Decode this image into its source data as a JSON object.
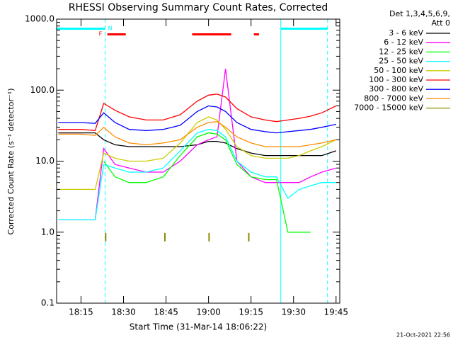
{
  "chart_data": {
    "type": "line",
    "title": "RHESSI Observing Summary Count Rates, Corrected",
    "x_label": "Start Time (31-Mar-14 18:06:22)",
    "y_label": "Corrected Count Rate (s⁻¹ detector⁻¹)",
    "legend_title": [
      "Det 1,3,4,5,6,9,",
      "Att 0"
    ],
    "footer": "21-Oct-2021 22:56",
    "log_y": true,
    "xlim": [
      1086.4,
      1186.3
    ],
    "ylim": [
      0.1,
      1000
    ],
    "xticks": [
      {
        "value": 1095,
        "label": "18:15"
      },
      {
        "value": 1110,
        "label": "18:30"
      },
      {
        "value": 1125,
        "label": "18:45"
      },
      {
        "value": 1140,
        "label": "19:00"
      },
      {
        "value": 1155,
        "label": "19:15"
      },
      {
        "value": 1170,
        "label": "19:30"
      },
      {
        "value": 1185,
        "label": "19:45"
      }
    ],
    "yticks": [
      {
        "value": 1000,
        "label": "1000.0"
      },
      {
        "value": 100,
        "label": "100.0"
      },
      {
        "value": 10,
        "label": "10.0"
      },
      {
        "value": 1,
        "label": "1.0"
      },
      0.1
    ],
    "x": [
      1087,
      1095,
      1100,
      1103,
      1107,
      1112,
      1118,
      1124,
      1130,
      1136,
      1140,
      1143,
      1146,
      1150,
      1155,
      1160,
      1164,
      1168,
      1172,
      1176,
      1180,
      1185
    ],
    "series": [
      {
        "name": "3 - 6 keV",
        "color": "#000000",
        "values": [
          25,
          25,
          25,
          20,
          17,
          16,
          16,
          16,
          16,
          17,
          19,
          19,
          18,
          15,
          13,
          12,
          12,
          12,
          12,
          12,
          12,
          14
        ]
      },
      {
        "name": "6 - 12 keV",
        "color": "#ff00ff",
        "values": [
          1.5,
          1.5,
          1.5,
          15,
          9,
          8,
          7,
          7,
          10,
          17,
          20,
          22,
          200,
          10,
          6,
          5,
          5,
          5,
          5,
          6,
          7,
          8
        ]
      },
      {
        "name": "12 - 25 keV",
        "color": "#00ff00",
        "values": [
          null,
          null,
          null,
          10,
          6,
          5,
          5,
          6,
          12,
          22,
          25,
          24,
          20,
          9,
          6,
          5.5,
          5.5,
          1,
          1,
          1,
          null,
          null
        ]
      },
      {
        "name": "25 - 50 keV",
        "color": "#00ffff",
        "values": [
          1.5,
          1.5,
          1.5,
          9,
          8,
          7,
          7,
          8,
          14,
          25,
          28,
          27,
          22,
          10,
          7,
          6,
          6,
          3,
          4,
          4.5,
          5,
          5
        ]
      },
      {
        "name": "50 - 100 keV",
        "color": "#cccc00",
        "values": [
          4,
          4,
          4,
          13,
          11,
          10,
          10,
          11,
          18,
          35,
          42,
          38,
          28,
          16,
          12,
          11,
          11,
          11,
          12,
          14,
          16,
          20
        ]
      },
      {
        "name": "100 - 300 keV",
        "color": "#ff0000",
        "values": [
          28,
          28,
          27,
          65,
          52,
          42,
          38,
          38,
          45,
          70,
          85,
          88,
          80,
          55,
          42,
          38,
          36,
          38,
          40,
          43,
          48,
          60
        ]
      },
      {
        "name": "300 - 800 keV",
        "color": "#0000ff",
        "values": [
          35,
          35,
          34,
          48,
          35,
          28,
          27,
          28,
          32,
          50,
          60,
          58,
          50,
          35,
          28,
          26,
          25,
          26,
          27,
          28,
          30,
          33
        ]
      },
      {
        "name": "800 - 7000 keV",
        "color": "#ff8c00",
        "values": [
          24,
          24,
          23,
          30,
          22,
          18,
          17,
          18,
          20,
          30,
          35,
          36,
          30,
          22,
          18,
          16,
          16,
          16,
          16,
          17,
          18,
          20
        ]
      },
      {
        "name": "7000 - 15000 keV",
        "color": "#8b8b00",
        "x": [
          1103.7,
          1124.6,
          1140.2,
          1154.2
        ],
        "values": [
          0.85,
          0.85,
          0.85,
          0.85
        ]
      }
    ],
    "night_label": "N",
    "night_color": "#00ffff",
    "night_intervals": [
      [
        1086.4,
        1103.5
      ],
      [
        1165.5,
        1182
      ]
    ],
    "flare_label": "F",
    "flare_color": "#ff0000",
    "flare_intervals": [
      [
        1104.3,
        1110.8
      ],
      [
        1134.2,
        1148
      ],
      [
        1156,
        1157.8
      ]
    ]
  }
}
